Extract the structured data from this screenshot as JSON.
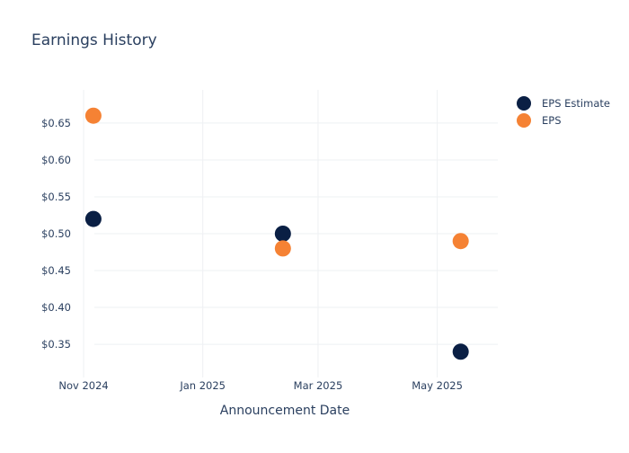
{
  "chart_data": {
    "type": "scatter",
    "title": "Earnings History",
    "xlabel": "Announcement Date",
    "ylabel": "",
    "x_ticks": [
      "2024-11-01",
      "2025-01-01",
      "2025-03-01",
      "2025-05-01"
    ],
    "x_tick_labels": [
      "Nov 2024",
      "Jan 2025",
      "Mar 2025",
      "May 2025"
    ],
    "xlim": [
      "2024-10-26",
      "2025-06-01"
    ],
    "y_ticks": [
      0.35,
      0.4,
      0.45,
      0.5,
      0.55,
      0.6,
      0.65
    ],
    "y_tick_labels": [
      "$0.35",
      "$0.40",
      "$0.45",
      "$0.50",
      "$0.55",
      "$0.60",
      "$0.65"
    ],
    "ylim": [
      0.305,
      0.695
    ],
    "grid": true,
    "legend_position": "top-right",
    "series": [
      {
        "name": "EPS Estimate",
        "color": "#0a1f44",
        "points": [
          {
            "x": "2024-11-06",
            "y": 0.52
          },
          {
            "x": "2025-02-11",
            "y": 0.5
          },
          {
            "x": "2025-05-13",
            "y": 0.34
          }
        ]
      },
      {
        "name": "EPS",
        "color": "#f58234",
        "points": [
          {
            "x": "2024-11-06",
            "y": 0.66
          },
          {
            "x": "2025-02-11",
            "y": 0.48
          },
          {
            "x": "2025-05-13",
            "y": 0.49
          }
        ]
      }
    ]
  }
}
